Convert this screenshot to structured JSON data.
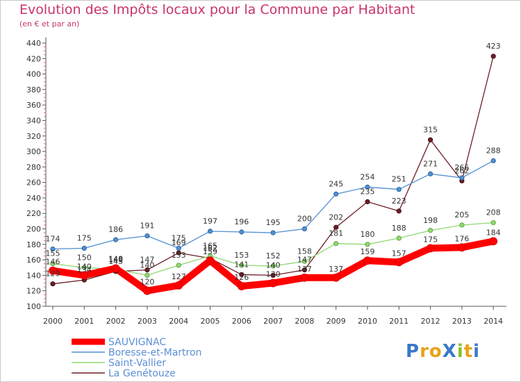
{
  "title": "Evolution des Impôts locaux pour la Commune par Habitant",
  "subtitle": "(en € et par an)",
  "logo": {
    "text": "ProXiti",
    "letter_colors": [
      "#3a78c8",
      "#e8a21a",
      "#e8a21a",
      "#3a78c8",
      "#8bbf2a",
      "#e8a21a",
      "#3a78c8"
    ]
  },
  "chart_data": {
    "type": "line",
    "title": "Evolution des Impôts locaux pour la Commune par Habitant",
    "subtitle": "(en € et par an)",
    "categories": [
      "2000",
      "2001",
      "2002",
      "2003",
      "2004",
      "2005",
      "2006",
      "2007",
      "2008",
      "2009",
      "2010",
      "2011",
      "2012",
      "2013",
      "2014"
    ],
    "ylim": [
      100,
      440
    ],
    "yticks": [
      100,
      120,
      140,
      160,
      180,
      200,
      220,
      240,
      260,
      280,
      300,
      320,
      340,
      360,
      380,
      400,
      420,
      440
    ],
    "grid": false,
    "legend": "bottom-left",
    "series": [
      {
        "name": "SAUVIGNAC",
        "color": "#ff0000",
        "values": [
          146,
          140,
          149,
          120,
          127,
          159,
          126,
          130,
          137,
          137,
          159,
          157,
          175,
          176,
          184
        ]
      },
      {
        "name": "Boresse-et-Martron",
        "color": "#4f8fd0",
        "values": [
          174,
          175,
          186,
          191,
          175,
          197,
          196,
          195,
          200,
          245,
          254,
          251,
          271,
          266,
          288
        ]
      },
      {
        "name": "Saint-Vallier",
        "color": "#8fd870",
        "values": [
          155,
          150,
          148,
          140,
          153,
          165,
          153,
          152,
          158,
          181,
          180,
          188,
          198,
          205,
          208
        ]
      },
      {
        "name": "La Genétouze",
        "color": "#6b1e24",
        "values": [
          129,
          134,
          145,
          147,
          169,
          162,
          141,
          140,
          147,
          202,
          235,
          223,
          315,
          262,
          423
        ]
      }
    ]
  }
}
